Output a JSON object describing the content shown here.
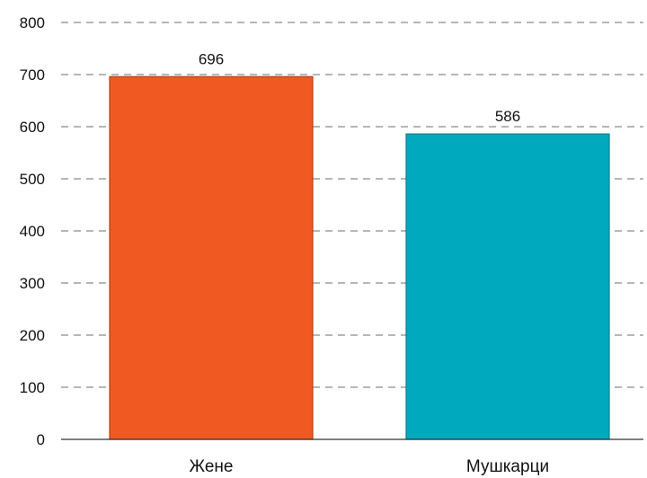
{
  "chart_data": {
    "type": "bar",
    "categories": [
      "Жене",
      "Мушкарци"
    ],
    "values": [
      696,
      586
    ],
    "data_labels": [
      "696",
      "586"
    ],
    "title": "",
    "xlabel": "",
    "ylabel": "",
    "ylim": [
      0,
      800
    ],
    "yticks": [
      0,
      100,
      200,
      300,
      400,
      500,
      600,
      700,
      800
    ],
    "grid": true,
    "legend": "none",
    "colors": [
      "#f05a22",
      "#00a9bd"
    ],
    "bar_border_colors": [
      "#b5400f",
      "#00808f"
    ]
  }
}
